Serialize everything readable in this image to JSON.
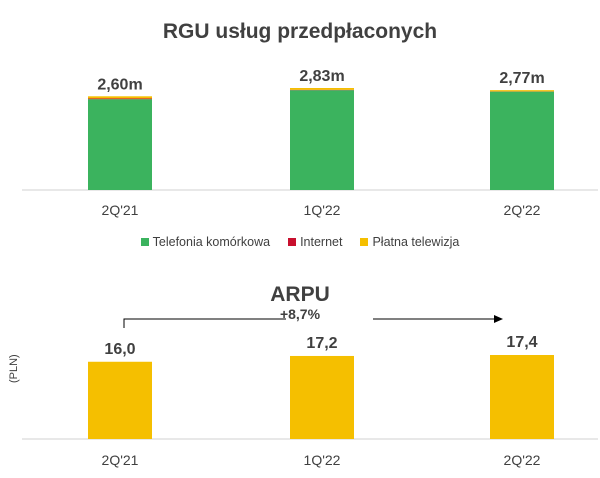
{
  "chart_data": [
    {
      "type": "bar",
      "stacked": true,
      "title": "RGU usług przedpłaconych",
      "categories": [
        "2Q'21",
        "1Q'22",
        "2Q'22"
      ],
      "totals_labels": [
        "2,60m",
        "2,83m",
        "2,77m"
      ],
      "totals": [
        2.6,
        2.83,
        2.77
      ],
      "series": [
        {
          "name": "Telefonia komórkowa",
          "color": "#3bb35e",
          "values": [
            2.52,
            2.77,
            2.73
          ]
        },
        {
          "name": "Internet",
          "color": "#c8102e",
          "values": [
            0.02,
            0.01,
            0.005
          ]
        },
        {
          "name": "Płatna telewizja",
          "color": "#f5bf00",
          "values": [
            0.06,
            0.05,
            0.035
          ]
        }
      ],
      "legend_position": "bottom",
      "ylim": [
        0,
        2.83
      ]
    },
    {
      "type": "bar",
      "title": "ARPU",
      "ylabel": "(PLN)",
      "categories": [
        "2Q'21",
        "1Q'22",
        "2Q'22"
      ],
      "values": [
        16.0,
        17.2,
        17.4
      ],
      "value_labels": [
        "16,0",
        "17,2",
        "17,4"
      ],
      "color": "#f5bf00",
      "annotation": "+8,7%",
      "ylim": [
        0,
        17.4
      ]
    }
  ]
}
